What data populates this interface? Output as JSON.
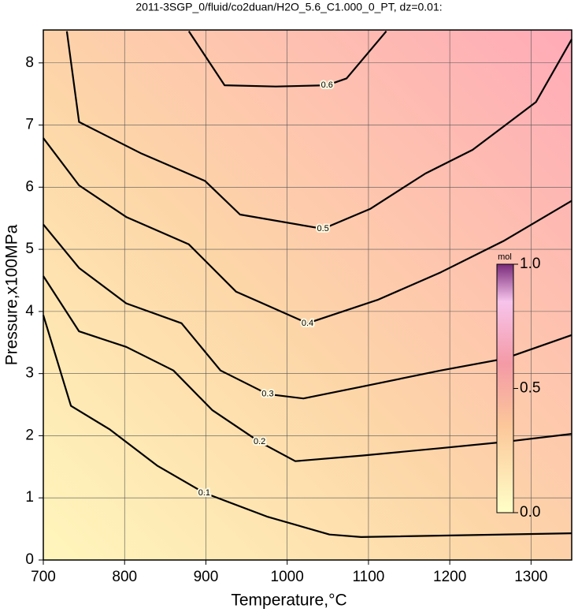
{
  "chart_data": {
    "type": "contour",
    "title": "2011-3SGP_0/fluid/co2duan/H2O_5.6_C1.000_0_PT, dz=0.01:",
    "xlabel": "Temperature,°C",
    "ylabel": "Pressure,x100MPa",
    "xlim": [
      700,
      1350
    ],
    "ylim": [
      0,
      8.53
    ],
    "xticks": [
      700,
      800,
      900,
      1000,
      1100,
      1200,
      1300
    ],
    "yticks": [
      0,
      1,
      2,
      3,
      4,
      5,
      6,
      7,
      8
    ],
    "grid": true,
    "colorbar": {
      "label": "mol",
      "lim": [
        0,
        1
      ],
      "ticks": [
        {
          "value": 0,
          "label": "0.0"
        },
        {
          "value": 0.5,
          "label": "0.5"
        },
        {
          "value": 1,
          "label": "1.0"
        }
      ]
    },
    "series": [
      {
        "level": 0.1,
        "color": "#000000",
        "x": [
          700,
          734,
          782,
          840,
          898,
          975,
          1052,
          1091,
          1350
        ],
        "y": [
          3.94,
          2.48,
          2.1,
          1.52,
          1.08,
          0.7,
          0.41,
          0.37,
          0.43
        ]
      },
      {
        "level": 0.2,
        "color": "#000000",
        "x": [
          700,
          744,
          802,
          860,
          908,
          966,
          1010,
          1092,
          1189,
          1267,
          1350
        ],
        "y": [
          4.57,
          3.68,
          3.43,
          3.05,
          2.41,
          1.9,
          1.59,
          1.68,
          1.8,
          1.9,
          2.03
        ]
      },
      {
        "level": 0.3,
        "color": "#000000",
        "x": [
          700,
          744,
          802,
          870,
          918,
          976,
          1020,
          1092,
          1189,
          1267,
          1350
        ],
        "y": [
          5.4,
          4.7,
          4.13,
          3.81,
          3.05,
          2.67,
          2.6,
          2.79,
          3.05,
          3.24,
          3.62
        ]
      },
      {
        "level": 0.4,
        "color": "#000000",
        "x": [
          700,
          744,
          802,
          879,
          937,
          1025,
          1112,
          1189,
          1267,
          1350
        ],
        "y": [
          6.79,
          6.03,
          5.52,
          5.08,
          4.32,
          3.81,
          4.19,
          4.63,
          5.14,
          5.78
        ]
      },
      {
        "level": 0.5,
        "color": "#000000",
        "x": [
          729,
          744,
          821,
          899,
          942,
          1044,
          1102,
          1170,
          1228,
          1306,
          1350
        ],
        "y": [
          8.51,
          7.05,
          6.54,
          6.1,
          5.56,
          5.33,
          5.65,
          6.22,
          6.6,
          7.37,
          8.38
        ]
      },
      {
        "level": 0.6,
        "color": "#000000",
        "x": [
          879,
          923,
          986,
          1049,
          1073,
          1122
        ],
        "y": [
          8.51,
          7.64,
          7.62,
          7.64,
          7.75,
          8.51
        ]
      }
    ]
  }
}
